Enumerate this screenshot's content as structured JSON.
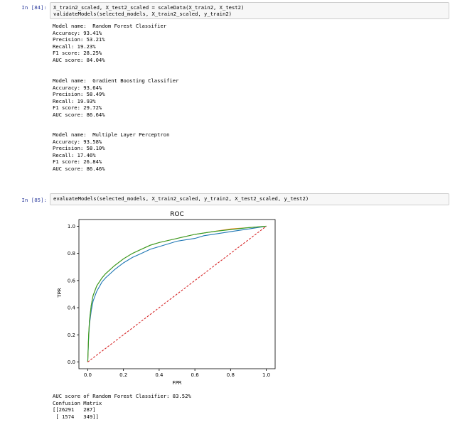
{
  "cells": [
    {
      "prompt": "In [84]:",
      "code": [
        "X_train2_scaled, X_test2_scaled = scaleData(X_train2, X_test2)",
        "validateModels(selected_models, X_train2_scaled, y_train2)"
      ],
      "output": [
        [
          "Model name:  Random Forest Classifier",
          "Accuracy: 93.41%",
          "Precision: 53.21%",
          "Recall: 19.23%",
          "F1 score: 28.25%",
          "AUC score: 84.04%"
        ],
        [
          "Model name:  Gradient Boosting Classifier",
          "Accuracy: 93.64%",
          "Precision: 58.49%",
          "Recall: 19.93%",
          "F1 score: 29.72%",
          "AUC score: 86.64%"
        ],
        [
          "Model name:  Multiple Layer Perceptron",
          "Accuracy: 93.58%",
          "Precision: 58.10%",
          "Recall: 17.46%",
          "F1 score: 26.84%",
          "AUC score: 86.46%"
        ]
      ]
    },
    {
      "prompt": "In [85]:",
      "code": [
        "evaluateModels(selected_models, X_train2_scaled, y_train2, X_test2_scaled, y_test2)"
      ],
      "output_after_chart": [
        "AUC score of Random Forest Classifier: 83.52%",
        "Confusion Matrix",
        "[[26291   287]",
        " [ 1574   349]]"
      ]
    }
  ],
  "chart_data": {
    "type": "line",
    "title": "ROC",
    "xlabel": "FPR",
    "ylabel": "TPR",
    "xlim": [
      0,
      1
    ],
    "ylim": [
      0,
      1
    ],
    "xticks": [
      "0.0",
      "0.2",
      "0.4",
      "0.6",
      "0.8",
      "1.0"
    ],
    "yticks": [
      "0.0",
      "0.2",
      "0.4",
      "0.6",
      "0.8",
      "1.0"
    ],
    "grid": false,
    "legend": "none",
    "series": [
      {
        "color": "#1f77b4",
        "x": [
          0,
          0.005,
          0.01,
          0.02,
          0.03,
          0.05,
          0.08,
          0.1,
          0.15,
          0.2,
          0.25,
          0.3,
          0.35,
          0.4,
          0.5,
          0.6,
          0.65,
          0.7,
          0.8,
          0.9,
          1.0
        ],
        "y": [
          0,
          0.18,
          0.28,
          0.38,
          0.45,
          0.52,
          0.59,
          0.62,
          0.68,
          0.73,
          0.77,
          0.8,
          0.83,
          0.85,
          0.89,
          0.91,
          0.93,
          0.94,
          0.96,
          0.98,
          1.0
        ]
      },
      {
        "color": "#ff7f0e",
        "x": [
          0,
          0.005,
          0.01,
          0.02,
          0.03,
          0.05,
          0.08,
          0.1,
          0.15,
          0.2,
          0.25,
          0.3,
          0.35,
          0.4,
          0.5,
          0.6,
          0.7,
          0.8,
          0.9,
          1.0
        ],
        "y": [
          0,
          0.2,
          0.3,
          0.42,
          0.49,
          0.56,
          0.62,
          0.65,
          0.71,
          0.76,
          0.8,
          0.83,
          0.86,
          0.88,
          0.91,
          0.94,
          0.96,
          0.98,
          0.99,
          1.0
        ]
      },
      {
        "color": "#2ca02c",
        "x": [
          0,
          0.005,
          0.01,
          0.02,
          0.03,
          0.05,
          0.08,
          0.1,
          0.15,
          0.2,
          0.25,
          0.3,
          0.35,
          0.4,
          0.5,
          0.6,
          0.7,
          0.8,
          0.9,
          1.0
        ],
        "y": [
          0,
          0.2,
          0.31,
          0.42,
          0.49,
          0.56,
          0.62,
          0.65,
          0.71,
          0.76,
          0.8,
          0.83,
          0.86,
          0.88,
          0.91,
          0.94,
          0.96,
          0.975,
          0.99,
          1.0
        ]
      },
      {
        "color": "#d62728",
        "style": "dashed",
        "x": [
          0,
          1
        ],
        "y": [
          0,
          1
        ]
      }
    ]
  }
}
